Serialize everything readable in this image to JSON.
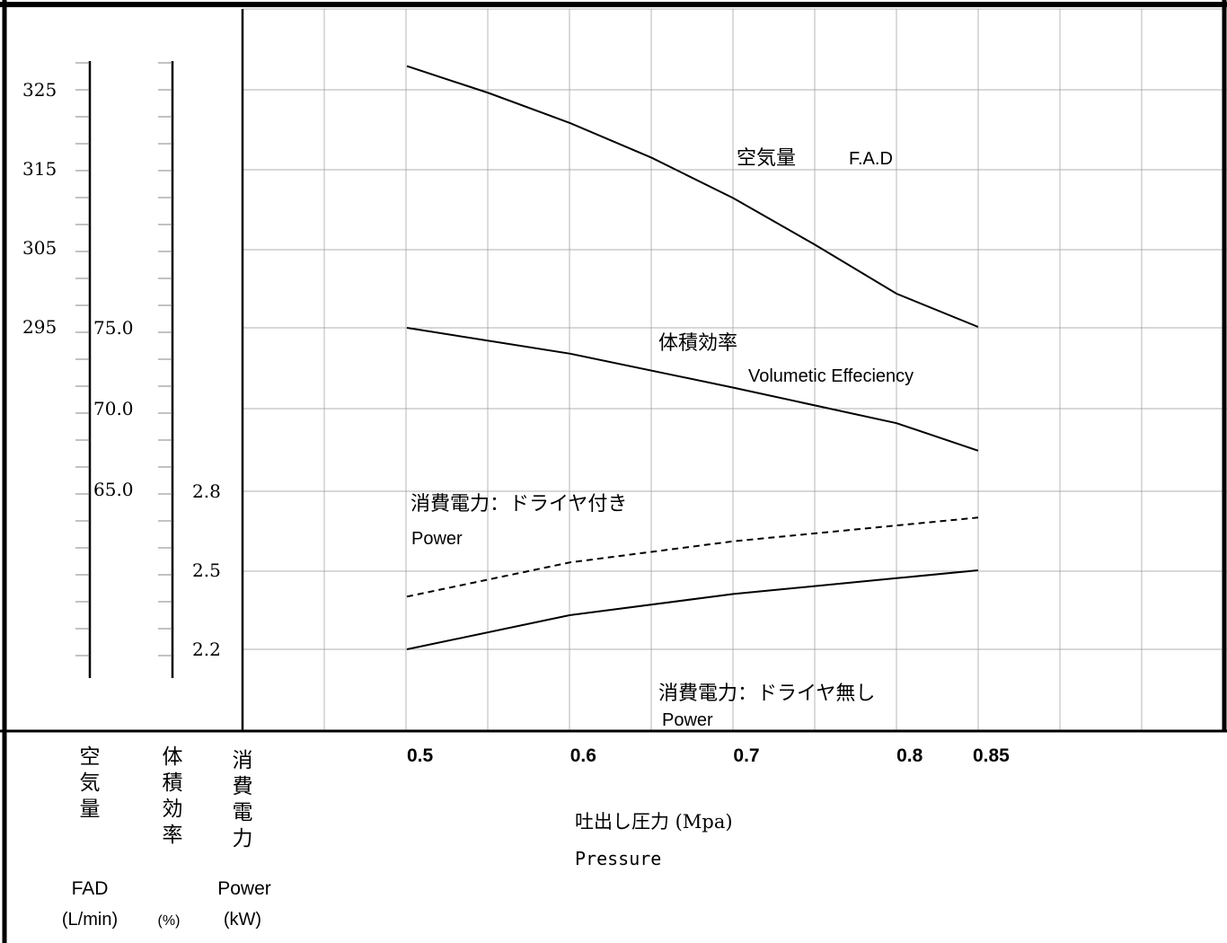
{
  "chart_data": {
    "type": "line",
    "x": [
      0.5,
      0.6,
      0.7,
      0.8,
      0.85
    ],
    "xtick_labels": [
      "0.5",
      "0.6",
      "0.7",
      "0.8",
      "0.85"
    ],
    "xlim": [
      0.4,
      0.9
    ],
    "xlabel_jp": "吐出し圧力 (Mpa)",
    "xlabel_en": "Pressure",
    "axes": {
      "fad": {
        "title_jp": [
          "空",
          "気",
          "量"
        ],
        "label": "FAD",
        "unit": "(L/min)",
        "ticks": [
          325,
          315,
          305,
          295
        ],
        "tick_labels": [
          "325",
          "315",
          "305",
          "295"
        ]
      },
      "vol": {
        "title_jp": [
          "体",
          "積",
          "効",
          "率"
        ],
        "unit": "(%)",
        "ticks": [
          75.0,
          70.0,
          65.0
        ],
        "tick_labels": [
          "75.0",
          "70.0",
          "65.0"
        ]
      },
      "power": {
        "title_jp": [
          "消",
          "費",
          "電",
          "力"
        ],
        "label": "Power",
        "unit": "(kW)",
        "ticks": [
          2.8,
          2.5,
          2.2
        ],
        "tick_labels": [
          "2.8",
          "2.5",
          "2.2"
        ]
      }
    },
    "series": [
      {
        "name": "空気量 F.AD",
        "label_jp": "空気量",
        "label_en": "F.A.D",
        "axis": "fad",
        "style": "solid",
        "points": [
          [
            0.5,
            328.0
          ],
          [
            0.55,
            324.6
          ],
          [
            0.6,
            320.8
          ],
          [
            0.65,
            316.4
          ],
          [
            0.7,
            311.3
          ],
          [
            0.75,
            305.4
          ],
          [
            0.8,
            299.2
          ],
          [
            0.85,
            295.0
          ]
        ]
      },
      {
        "name": "体積効率 Volumetic Effeciency",
        "label_jp": "体積効率",
        "label_en": "Volumetic Effeciency",
        "axis": "vol",
        "style": "solid",
        "points": [
          [
            0.5,
            75.0
          ],
          [
            0.6,
            73.4
          ],
          [
            0.7,
            71.3
          ],
          [
            0.8,
            69.1
          ],
          [
            0.85,
            67.4
          ]
        ]
      },
      {
        "name": "消費電力:ドライヤ付き Power",
        "label_jp": "消費電力：ドライヤ付き",
        "label_en": "Power",
        "axis": "power",
        "style": "dashed",
        "points": [
          [
            0.5,
            2.4
          ],
          [
            0.6,
            2.53
          ],
          [
            0.7,
            2.61
          ],
          [
            0.8,
            2.67
          ],
          [
            0.85,
            2.7
          ]
        ]
      },
      {
        "name": "消費電力:ドライヤ無し Power",
        "label_jp": "消費電力：ドライヤ無し",
        "label_en": "Power",
        "axis": "power",
        "style": "solid",
        "points": [
          [
            0.5,
            2.2
          ],
          [
            0.6,
            2.33
          ],
          [
            0.7,
            2.41
          ],
          [
            0.8,
            2.47
          ],
          [
            0.85,
            2.5
          ]
        ]
      }
    ],
    "grid": true,
    "colors": {
      "line": "#000000",
      "grid": "#999999",
      "background": "#ffffff"
    }
  }
}
